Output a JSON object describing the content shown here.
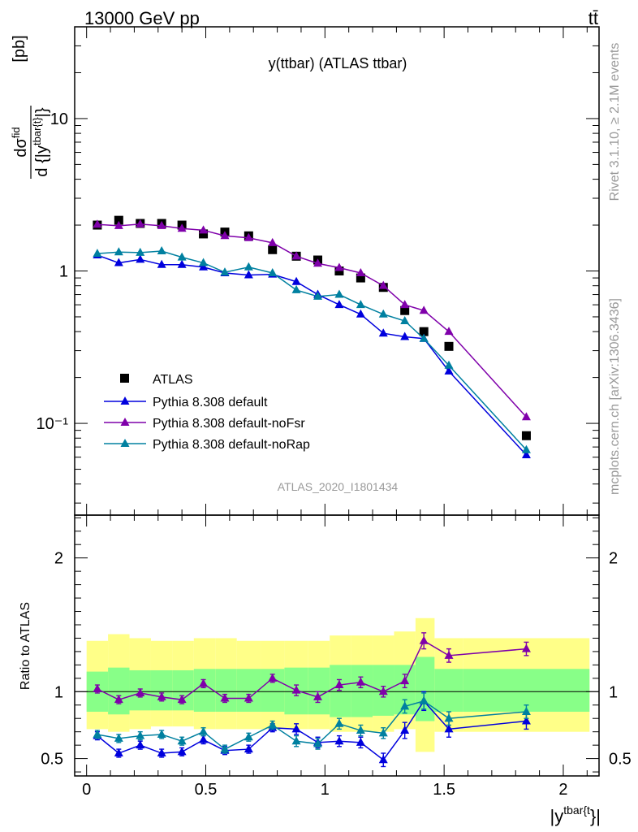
{
  "header": {
    "energy_label": "13000 GeV pp",
    "process_label": "tt̄"
  },
  "side_labels": {
    "rivet": "Rivet 3.1.10, ≥ 2.1M events",
    "mcplots": "mcplots.cern.ch [arXiv:1306.3436]"
  },
  "chart_data": {
    "type": "scatter",
    "title": "y(ttbar) (ATLAS ttbar)",
    "analysis_id": "ATLAS_2020_I1801434",
    "xlabel": "|y^{tbar{t}}|",
    "ylabel_top": "d σ^{fid} / d {|y^{tbar{t}}|} [pb]",
    "ylabel_ratio": "Ratio to ATLAS",
    "xlim": [
      -0.05,
      2.15
    ],
    "ylim_top": [
      0.025,
      40
    ],
    "yscale_top": "log",
    "ylim_ratio": [
      0.37,
      2.32
    ],
    "x_ticks": [
      {
        "v": 0,
        "label": "0"
      },
      {
        "v": 0.5,
        "label": "0.5"
      },
      {
        "v": 1,
        "label": "1"
      },
      {
        "v": 1.5,
        "label": "1.5"
      },
      {
        "v": 2,
        "label": "2"
      }
    ],
    "y_ticks_top": [
      {
        "v": 0.1,
        "label": "10⁻¹"
      },
      {
        "v": 1,
        "label": "1"
      },
      {
        "v": 10,
        "label": "10"
      }
    ],
    "y_ticks_ratio": [
      {
        "v": 0.5,
        "label": "0.5"
      },
      {
        "v": 1,
        "label": "1"
      },
      {
        "v": 2,
        "label": "2"
      }
    ],
    "legend_position": "bottom-left",
    "x": [
      0.045,
      0.135,
      0.225,
      0.315,
      0.4,
      0.49,
      0.58,
      0.68,
      0.78,
      0.88,
      0.97,
      1.06,
      1.15,
      1.245,
      1.335,
      1.415,
      1.52,
      1.845
    ],
    "bin_edges": [
      0,
      0.09,
      0.18,
      0.27,
      0.36,
      0.45,
      0.54,
      0.63,
      0.73,
      0.83,
      0.93,
      1.02,
      1.11,
      1.2,
      1.29,
      1.38,
      1.46,
      1.58,
      2.11
    ],
    "band_inner": [
      [
        0.85,
        1.15
      ],
      [
        0.83,
        1.18
      ],
      [
        0.86,
        1.16
      ],
      [
        0.86,
        1.16
      ],
      [
        0.86,
        1.16
      ],
      [
        0.85,
        1.17
      ],
      [
        0.85,
        1.17
      ],
      [
        0.85,
        1.17
      ],
      [
        0.85,
        1.17
      ],
      [
        0.83,
        1.18
      ],
      [
        0.83,
        1.18
      ],
      [
        0.81,
        1.2
      ],
      [
        0.81,
        1.2
      ],
      [
        0.82,
        1.2
      ],
      [
        0.83,
        1.2
      ],
      [
        0.78,
        1.26
      ],
      [
        0.85,
        1.17
      ],
      [
        0.85,
        1.17
      ]
    ],
    "band_outer": [
      [
        0.72,
        1.38
      ],
      [
        0.7,
        1.43
      ],
      [
        0.72,
        1.4
      ],
      [
        0.74,
        1.38
      ],
      [
        0.74,
        1.38
      ],
      [
        0.72,
        1.4
      ],
      [
        0.72,
        1.4
      ],
      [
        0.72,
        1.38
      ],
      [
        0.72,
        1.38
      ],
      [
        0.72,
        1.38
      ],
      [
        0.72,
        1.38
      ],
      [
        0.7,
        1.42
      ],
      [
        0.7,
        1.42
      ],
      [
        0.7,
        1.42
      ],
      [
        0.72,
        1.45
      ],
      [
        0.55,
        1.55
      ],
      [
        0.7,
        1.4
      ],
      [
        0.7,
        1.4
      ]
    ],
    "series": [
      {
        "name": "ATLAS",
        "color": "#000000",
        "marker": "square",
        "values": [
          2.0,
          2.15,
          2.05,
          2.05,
          2.0,
          1.75,
          1.8,
          1.7,
          1.38,
          1.25,
          1.18,
          1.0,
          0.9,
          0.78,
          0.55,
          0.4,
          0.32,
          0.083
        ]
      },
      {
        "name": "Pythia 8.308 default",
        "color": "#0000dd",
        "marker": "triangle",
        "values": [
          1.27,
          1.13,
          1.19,
          1.1,
          1.1,
          1.06,
          0.97,
          0.94,
          0.95,
          0.85,
          0.7,
          0.6,
          0.52,
          0.39,
          0.37,
          0.36,
          0.22,
          0.062
        ],
        "ratio": [
          0.67,
          0.54,
          0.6,
          0.54,
          0.55,
          0.64,
          0.56,
          0.57,
          0.73,
          0.72,
          0.62,
          0.63,
          0.62,
          0.49,
          0.71,
          0.93,
          0.72,
          0.78
        ],
        "ratio_err": [
          0.03,
          0.03,
          0.03,
          0.03,
          0.03,
          0.03,
          0.03,
          0.03,
          0.03,
          0.04,
          0.04,
          0.04,
          0.04,
          0.05,
          0.06,
          0.07,
          0.06,
          0.06
        ]
      },
      {
        "name": "Pythia 8.308 default-noFsr",
        "color": "#7f00aa",
        "marker": "triangle",
        "values": [
          2.02,
          1.98,
          2.03,
          1.98,
          1.9,
          1.85,
          1.7,
          1.65,
          1.53,
          1.25,
          1.12,
          1.05,
          0.97,
          0.8,
          0.6,
          0.55,
          0.4,
          0.11
        ],
        "ratio": [
          1.02,
          0.94,
          0.99,
          0.96,
          0.94,
          1.06,
          0.95,
          0.95,
          1.1,
          1.01,
          0.96,
          1.05,
          1.07,
          1.0,
          1.08,
          1.38,
          1.27,
          1.32
        ],
        "ratio_err": [
          0.03,
          0.03,
          0.03,
          0.03,
          0.03,
          0.03,
          0.03,
          0.03,
          0.03,
          0.04,
          0.04,
          0.04,
          0.04,
          0.04,
          0.05,
          0.06,
          0.05,
          0.05
        ]
      },
      {
        "name": "Pythia 8.308 default-noRap",
        "color": "#0080a0",
        "marker": "triangle",
        "values": [
          1.3,
          1.33,
          1.32,
          1.35,
          1.23,
          1.13,
          0.98,
          1.06,
          0.97,
          0.75,
          0.68,
          0.7,
          0.6,
          0.52,
          0.47,
          0.36,
          0.24,
          0.067
        ],
        "ratio": [
          0.68,
          0.65,
          0.67,
          0.68,
          0.63,
          0.7,
          0.57,
          0.66,
          0.75,
          0.63,
          0.61,
          0.76,
          0.71,
          0.69,
          0.89,
          0.93,
          0.8,
          0.85
        ],
        "ratio_err": [
          0.03,
          0.03,
          0.03,
          0.03,
          0.03,
          0.03,
          0.03,
          0.03,
          0.03,
          0.04,
          0.04,
          0.04,
          0.04,
          0.04,
          0.05,
          0.06,
          0.05,
          0.05
        ]
      }
    ]
  }
}
